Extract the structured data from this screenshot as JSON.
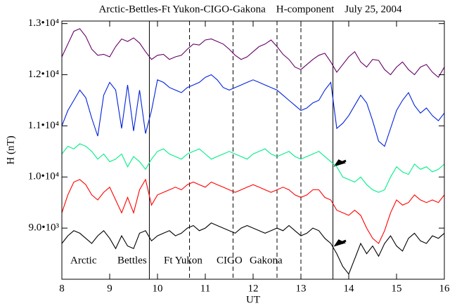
{
  "chart_data": {
    "type": "line",
    "title": "Arctic-Bettles-Ft Yukon-CIGO-Gakona    H-component    July 25, 2004",
    "x_label": "UT",
    "y_label": "H (nT)",
    "xlim": [
      8,
      16
    ],
    "xticks": [
      8,
      9,
      10,
      11,
      12,
      13,
      14,
      15,
      16
    ],
    "ylim": [
      8000,
      13050
    ],
    "yticks": [
      {
        "value": 9000,
        "label": "9.0•10³"
      },
      {
        "value": 10000,
        "label": "1.0•10⁴"
      },
      {
        "value": 11000,
        "label": "1.1•10⁴"
      },
      {
        "value": 12000,
        "label": "1.2•10⁴"
      },
      {
        "value": 13000,
        "label": "1.3•10⁴"
      }
    ],
    "vlines": [
      {
        "x": 9.83,
        "style": "solid"
      },
      {
        "x": 10.67,
        "style": "dashed"
      },
      {
        "x": 11.58,
        "style": "dashed"
      },
      {
        "x": 12.5,
        "style": "dashed"
      },
      {
        "x": 13.0,
        "style": "dashed"
      },
      {
        "x": 13.67,
        "style": "solid"
      }
    ],
    "x": [
      8,
      8.125,
      8.25,
      8.375,
      8.5,
      8.625,
      8.75,
      8.875,
      9,
      9.125,
      9.25,
      9.375,
      9.5,
      9.625,
      9.75,
      9.875,
      10,
      10.125,
      10.25,
      10.375,
      10.5,
      10.625,
      10.75,
      10.875,
      11,
      11.125,
      11.25,
      11.375,
      11.5,
      11.625,
      11.75,
      11.875,
      12,
      12.125,
      12.25,
      12.375,
      12.5,
      12.625,
      12.75,
      12.875,
      13,
      13.125,
      13.25,
      13.375,
      13.5,
      13.625,
      13.75,
      13.875,
      14,
      14.125,
      14.25,
      14.375,
      14.5,
      14.625,
      14.75,
      14.875,
      15,
      15.125,
      15.25,
      15.375,
      15.5,
      15.625,
      15.75,
      15.875,
      16
    ],
    "series": [
      {
        "name": "Arctic",
        "color": "#000000",
        "values": [
          8700,
          8850,
          8950,
          8900,
          8800,
          8700,
          8850,
          8950,
          8800,
          8600,
          8850,
          8650,
          8600,
          8900,
          8950,
          8750,
          8850,
          8900,
          8950,
          8850,
          8900,
          9000,
          9050,
          8950,
          9000,
          9100,
          9050,
          9000,
          8950,
          8900,
          9000,
          9050,
          9000,
          8950,
          8900,
          8950,
          9000,
          8950,
          9050,
          8950,
          8850,
          8900,
          9000,
          8950,
          8800,
          8700,
          8500,
          8250,
          8100,
          8400,
          8700,
          8500,
          8650,
          8450,
          8700,
          8850,
          8650,
          8550,
          8800,
          8900,
          8750,
          8700,
          8850,
          8800,
          8900
        ]
      },
      {
        "name": "Bettles",
        "color": "#ff0000",
        "values": [
          9300,
          9650,
          9900,
          9950,
          9850,
          9650,
          9550,
          9700,
          9800,
          9550,
          9300,
          9600,
          9300,
          9750,
          9950,
          9450,
          9650,
          9700,
          9750,
          9800,
          9750,
          9850,
          9900,
          9850,
          9800,
          9900,
          9850,
          9800,
          9750,
          9700,
          9750,
          9800,
          9850,
          9800,
          9750,
          9700,
          9750,
          9800,
          9750,
          9650,
          9600,
          9650,
          9750,
          9750,
          9600,
          9550,
          9350,
          9300,
          9250,
          9350,
          9250,
          9000,
          8800,
          8700,
          8950,
          9300,
          9550,
          9450,
          9500,
          9650,
          9550,
          9500,
          9550,
          9500,
          9650
        ]
      },
      {
        "name": "Ft Yukon",
        "color": "#00ee88",
        "values": [
          10450,
          10600,
          10550,
          10650,
          10600,
          10500,
          10350,
          10450,
          10300,
          10350,
          10450,
          10200,
          10400,
          10300,
          10150,
          10350,
          10500,
          10550,
          10450,
          10400,
          10350,
          10450,
          10500,
          10550,
          10450,
          10350,
          10400,
          10450,
          10500,
          10450,
          10400,
          10350,
          10450,
          10500,
          10550,
          10450,
          10400,
          10450,
          10500,
          10400,
          10350,
          10400,
          10450,
          10500,
          10400,
          10300,
          10200,
          10000,
          9950,
          9900,
          10000,
          9850,
          9750,
          9700,
          9750,
          10000,
          10200,
          10100,
          10050,
          10250,
          10150,
          10200,
          10100,
          10150,
          10250
        ]
      },
      {
        "name": "CIGO",
        "color": "#0022dd",
        "values": [
          11000,
          11300,
          11500,
          11700,
          11550,
          11150,
          10800,
          11600,
          11850,
          11700,
          10950,
          11800,
          10900,
          11700,
          10850,
          11300,
          11900,
          11850,
          11750,
          11700,
          11650,
          11750,
          11800,
          11850,
          11950,
          12000,
          11900,
          11750,
          11700,
          11750,
          11800,
          11850,
          11900,
          11850,
          11800,
          11750,
          11700,
          11600,
          11500,
          11400,
          11300,
          11350,
          11450,
          11500,
          11700,
          11850,
          10950,
          11050,
          11200,
          11400,
          11600,
          11450,
          11100,
          10700,
          10600,
          10950,
          11300,
          11500,
          11650,
          11400,
          11250,
          11350,
          11200,
          11100,
          11250
        ]
      },
      {
        "name": "Gakona",
        "color": "#660066",
        "values": [
          12350,
          12600,
          12850,
          12900,
          12750,
          12500,
          12380,
          12400,
          12350,
          12550,
          12700,
          12650,
          12720,
          12620,
          12450,
          12300,
          12380,
          12400,
          12300,
          12350,
          12380,
          12500,
          12600,
          12580,
          12680,
          12700,
          12650,
          12600,
          12500,
          12380,
          12300,
          12350,
          12450,
          12550,
          12600,
          12680,
          12550,
          12400,
          12300,
          12150,
          12100,
          12200,
          12300,
          12380,
          12420,
          12250,
          12050,
          12200,
          12350,
          12450,
          12250,
          12150,
          12300,
          12280,
          12100,
          12000,
          12150,
          12250,
          12100,
          12000,
          12150,
          12200,
          12050,
          11950,
          12150
        ]
      }
    ]
  }
}
